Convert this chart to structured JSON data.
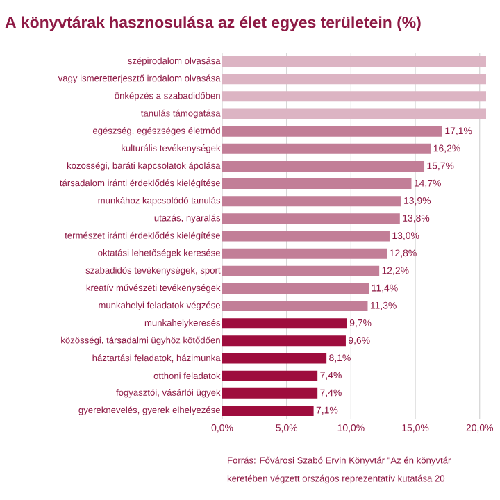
{
  "chart_data": {
    "type": "bar",
    "orientation": "horizontal",
    "title": "A könyvtárak hasznosulása az élet egyes területein (%)",
    "categories": [
      "szépirodalom olvasása",
      "vagy ismeretterjesztő irodalom olvasása",
      "önképzés a szabadidőben",
      "tanulás támogatása",
      "egészség, egészséges életmód",
      "kulturális tevékenységek",
      "közösségi, baráti kapcsolatok ápolása",
      "társadalom iránti érdeklődés kielégítése",
      "munkához kapcsolódó tanulás",
      "utazás, nyaralás",
      "természet iránti érdeklődés kielégítése",
      "oktatási lehetőségek keresése",
      "szabadidős tevékenységek, sport",
      "kreatív művészeti tevékenységek",
      "munkahelyi feladatok végzése",
      "munkahelykeresés",
      "közösségi, társadalmi ügyhöz kötődően",
      "háztartási feladatok, házimunka",
      "otthoni feladatok",
      "fogyasztói, vásárlói ügyek",
      "gyereknevelés, gyerek elhelyezése"
    ],
    "values": [
      20.5,
      20.5,
      20.5,
      20.5,
      17.1,
      16.2,
      15.7,
      14.7,
      13.9,
      13.8,
      13.0,
      12.8,
      12.2,
      11.4,
      11.3,
      9.7,
      9.6,
      8.1,
      7.4,
      7.4,
      7.1
    ],
    "value_labels": [
      null,
      null,
      null,
      null,
      "17,1%",
      "16,2%",
      "15,7%",
      "14,7%",
      "13,9%",
      "13,8%",
      "13,0%",
      "12,8%",
      "12,2%",
      "11,4%",
      "11,3%",
      "9,7%",
      "9,6%",
      "8,1%",
      "7,4%",
      "7,4%",
      "7,1%"
    ],
    "colors": [
      "#dcb4c3",
      "#dcb4c3",
      "#dcb4c3",
      "#dcb4c3",
      "#c27e97",
      "#c27e97",
      "#c27e97",
      "#c27e97",
      "#c27e97",
      "#c27e97",
      "#c27e97",
      "#c27e97",
      "#c27e97",
      "#c27e97",
      "#c27e97",
      "#9e0d3d",
      "#9e0d3d",
      "#9e0d3d",
      "#9e0d3d",
      "#9e0d3d",
      "#9e0d3d"
    ],
    "xlim": [
      0,
      20.5
    ],
    "xticks": [
      {
        "value": 0,
        "label": "0,0%"
      },
      {
        "value": 5,
        "label": "5,0%"
      },
      {
        "value": 10,
        "label": "10,0%"
      },
      {
        "value": 15,
        "label": "15,0%"
      },
      {
        "value": 20,
        "label": "20,0%"
      }
    ],
    "grid": "x",
    "annotations": [
      "Forrás: Fővárosi Szabó Ervin Könyvtár \"Az én könyvtár",
      "keretében végzett országos reprezentatív kutatása 20"
    ]
  }
}
